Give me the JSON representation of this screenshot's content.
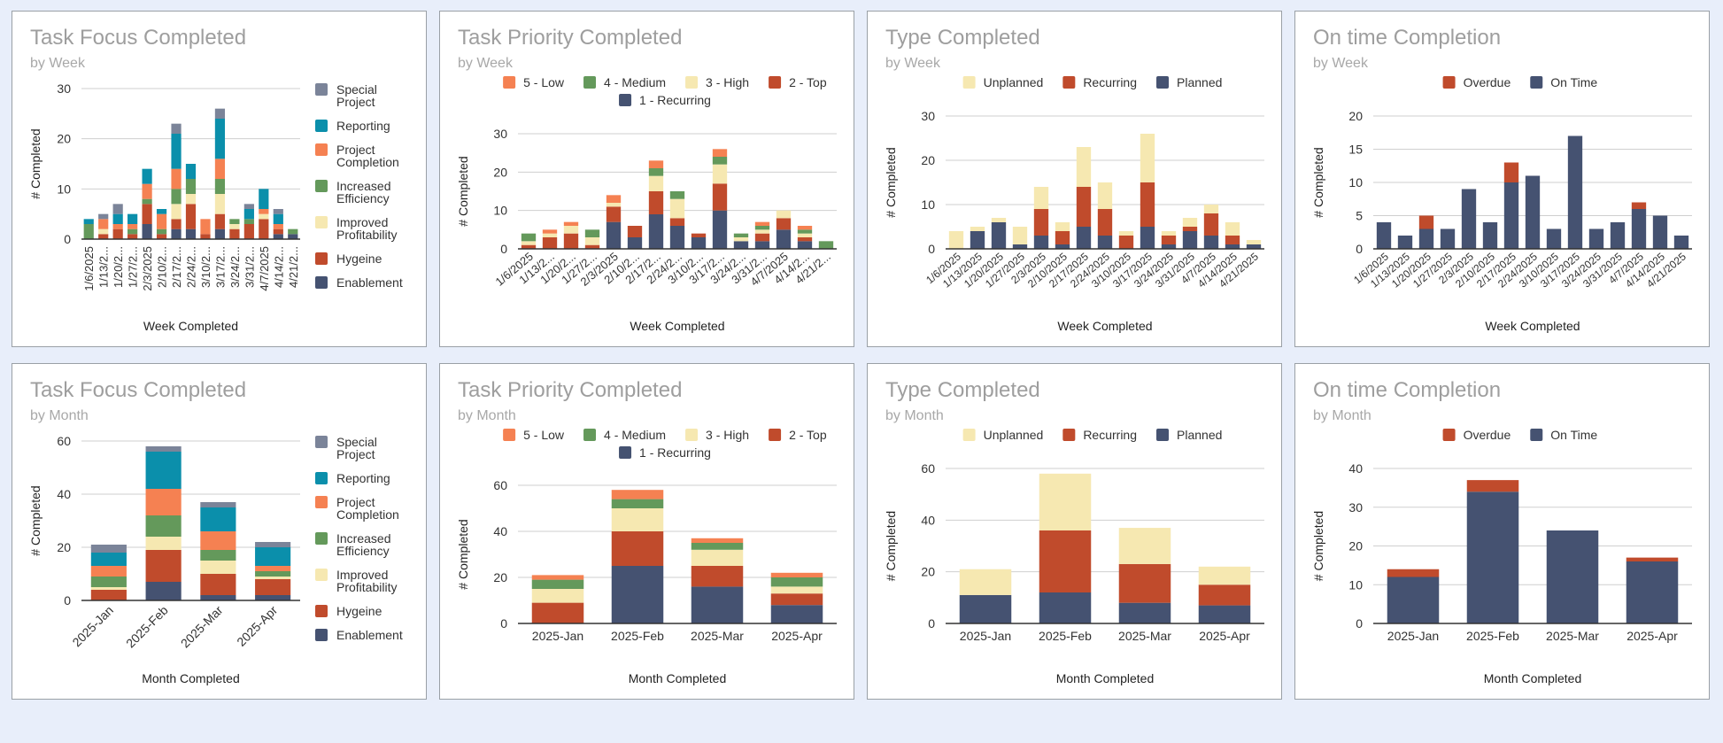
{
  "colors": {
    "Special Project": "#7b8499",
    "Reporting": "#0b8fab",
    "Project Completion": "#f58152",
    "Increased Efficiency": "#64995b",
    "Improved Profitability": "#f6e8b1",
    "Hygeine": "#c04b2c",
    "Enablement": "#455271",
    "5 - Low": "#f58152",
    "4 - Medium": "#64995b",
    "3 - High": "#f6e8b1",
    "2 - Top": "#c04b2c",
    "1 - Recurring": "#455271",
    "Unplanned": "#f6e8b1",
    "Recurring": "#c04b2c",
    "Planned": "#455271",
    "Overdue": "#c04b2c",
    "On Time": "#455271"
  },
  "chart_data": [
    {
      "id": "focus-week",
      "type": "bar",
      "stacked": true,
      "title": "Task Focus Completed",
      "subtitle": "by Week",
      "xlabel": "Week Completed",
      "ylabel": "# Completed",
      "ylim": [
        0,
        30
      ],
      "yticks": [
        0,
        10,
        20,
        30
      ],
      "legend": "right",
      "xlabel_style": "vertical-truncated",
      "categories": [
        "1/6/2025",
        "1/13/2...",
        "1/20/2...",
        "1/27/2...",
        "2/3/2025",
        "2/10/2...",
        "2/17/2...",
        "2/24/2...",
        "3/10/2...",
        "3/17/2...",
        "3/24/2...",
        "3/31/2...",
        "4/7/2025",
        "4/14/2...",
        "4/21/2..."
      ],
      "legend_order": [
        "Special Project",
        "Reporting",
        "Project Completion",
        "Increased Efficiency",
        "Improved Profitability",
        "Hygeine",
        "Enablement"
      ],
      "series": [
        {
          "name": "Enablement",
          "values": [
            0,
            0,
            0,
            0,
            3,
            0,
            2,
            2,
            0,
            2,
            0,
            0,
            0,
            1,
            1
          ]
        },
        {
          "name": "Hygeine",
          "values": [
            0,
            1,
            2,
            1,
            4,
            1,
            2,
            5,
            1,
            3,
            2,
            3,
            4,
            1,
            0
          ]
        },
        {
          "name": "Improved Profitability",
          "values": [
            0,
            1,
            0,
            0,
            0,
            0,
            3,
            2,
            0,
            4,
            1,
            0,
            1,
            0,
            0
          ]
        },
        {
          "name": "Increased Efficiency",
          "values": [
            3,
            0,
            0,
            1,
            1,
            1,
            3,
            3,
            0,
            3,
            1,
            1,
            0,
            0,
            1
          ]
        },
        {
          "name": "Project Completion",
          "values": [
            0,
            2,
            1,
            1,
            3,
            3,
            4,
            0,
            3,
            4,
            0,
            0,
            1,
            1,
            0
          ]
        },
        {
          "name": "Reporting",
          "values": [
            1,
            0,
            2,
            2,
            3,
            1,
            7,
            3,
            0,
            8,
            0,
            2,
            4,
            2,
            0
          ]
        },
        {
          "name": "Special Project",
          "values": [
            0,
            1,
            2,
            0,
            0,
            0,
            2,
            0,
            0,
            2,
            0,
            1,
            0,
            1,
            0
          ]
        }
      ]
    },
    {
      "id": "priority-week",
      "type": "bar",
      "stacked": true,
      "title": "Task Priority Completed",
      "subtitle": "by Week",
      "xlabel": "Week Completed",
      "ylabel": "# Completed",
      "ylim": [
        0,
        30
      ],
      "yticks": [
        0,
        10,
        20,
        30
      ],
      "legend": "top",
      "xlabel_style": "slanted-truncated",
      "categories": [
        "1/6/2025",
        "1/13/2...",
        "1/20/2...",
        "1/27/2...",
        "2/3/2025",
        "2/10/2...",
        "2/17/2...",
        "2/24/2...",
        "3/10/2...",
        "3/17/2...",
        "3/24/2...",
        "3/31/2...",
        "4/7/2025",
        "4/14/2...",
        "4/21/2..."
      ],
      "legend_order": [
        "5 - Low",
        "4 - Medium",
        "3 - High",
        "2 - Top",
        "1 - Recurring"
      ],
      "series": [
        {
          "name": "1 - Recurring",
          "values": [
            0,
            0,
            0,
            0,
            7,
            3,
            9,
            6,
            3,
            10,
            2,
            2,
            5,
            2,
            0
          ]
        },
        {
          "name": "2 - Top",
          "values": [
            1,
            3,
            4,
            1,
            4,
            3,
            6,
            2,
            1,
            7,
            0,
            2,
            3,
            1,
            0
          ]
        },
        {
          "name": "3 - High",
          "values": [
            1,
            1,
            2,
            2,
            1,
            0,
            4,
            5,
            0,
            5,
            1,
            1,
            2,
            1,
            0
          ]
        },
        {
          "name": "4 - Medium",
          "values": [
            2,
            0,
            0,
            2,
            0,
            0,
            2,
            2,
            0,
            2,
            1,
            1,
            0,
            1,
            2
          ]
        },
        {
          "name": "5 - Low",
          "values": [
            0,
            1,
            1,
            0,
            2,
            0,
            2,
            0,
            0,
            2,
            0,
            1,
            0,
            1,
            0
          ]
        }
      ]
    },
    {
      "id": "type-week",
      "type": "bar",
      "stacked": true,
      "title": "Type Completed",
      "subtitle": "by Week",
      "xlabel": "Week Completed",
      "ylabel": "# Completed",
      "ylim": [
        0,
        30
      ],
      "yticks": [
        0,
        10,
        20,
        30
      ],
      "legend": "top",
      "xlabel_style": "slanted",
      "categories": [
        "1/6/2025",
        "1/13/2025",
        "1/20/2025",
        "1/27/2025",
        "2/3/2025",
        "2/10/2025",
        "2/17/2025",
        "2/24/2025",
        "3/10/2025",
        "3/17/2025",
        "3/24/2025",
        "3/31/2025",
        "4/7/2025",
        "4/14/2025",
        "4/21/2025"
      ],
      "legend_order": [
        "Unplanned",
        "Recurring",
        "Planned"
      ],
      "series": [
        {
          "name": "Planned",
          "values": [
            0,
            4,
            6,
            1,
            3,
            1,
            5,
            3,
            0,
            5,
            1,
            4,
            3,
            1,
            1
          ]
        },
        {
          "name": "Recurring",
          "values": [
            0,
            0,
            0,
            0,
            6,
            3,
            9,
            6,
            3,
            10,
            2,
            1,
            5,
            2,
            0
          ]
        },
        {
          "name": "Unplanned",
          "values": [
            4,
            1,
            1,
            4,
            5,
            2,
            9,
            6,
            1,
            11,
            1,
            2,
            2,
            3,
            1
          ]
        }
      ]
    },
    {
      "id": "ontime-week",
      "type": "bar",
      "stacked": true,
      "title": "On time Completion",
      "subtitle": "by Week",
      "xlabel": "Week Completed",
      "ylabel": "# Completed",
      "ylim": [
        0,
        20
      ],
      "yticks": [
        0,
        5,
        10,
        15,
        20
      ],
      "legend": "top",
      "xlabel_style": "slanted",
      "categories": [
        "1/6/2025",
        "1/13/2025",
        "1/20/2025",
        "1/27/2025",
        "2/3/2025",
        "2/10/2025",
        "2/17/2025",
        "2/24/2025",
        "3/10/2025",
        "3/17/2025",
        "3/24/2025",
        "3/31/2025",
        "4/7/2025",
        "4/14/2025",
        "4/21/2025"
      ],
      "legend_order": [
        "Overdue",
        "On Time"
      ],
      "series": [
        {
          "name": "On Time",
          "values": [
            4,
            2,
            3,
            3,
            9,
            4,
            10,
            11,
            3,
            17,
            3,
            4,
            6,
            5,
            2
          ]
        },
        {
          "name": "Overdue",
          "values": [
            0,
            0,
            2,
            0,
            0,
            0,
            3,
            0,
            0,
            0,
            0,
            0,
            1,
            0,
            0
          ]
        }
      ]
    },
    {
      "id": "focus-month",
      "type": "bar",
      "stacked": true,
      "title": "Task Focus Completed",
      "subtitle": "by Month",
      "xlabel": "Month Completed",
      "ylabel": "# Completed",
      "ylim": [
        0,
        60
      ],
      "yticks": [
        0,
        20,
        40,
        60
      ],
      "legend": "right",
      "xlabel_style": "slanted45",
      "categories": [
        "2025-Jan",
        "2025-Feb",
        "2025-Mar",
        "2025-Apr"
      ],
      "legend_order": [
        "Special Project",
        "Reporting",
        "Project Completion",
        "Increased Efficiency",
        "Improved Profitability",
        "Hygeine",
        "Enablement"
      ],
      "series": [
        {
          "name": "Enablement",
          "values": [
            0,
            7,
            2,
            2
          ]
        },
        {
          "name": "Hygeine",
          "values": [
            4,
            12,
            8,
            6
          ]
        },
        {
          "name": "Improved Profitability",
          "values": [
            1,
            5,
            5,
            1
          ]
        },
        {
          "name": "Increased Efficiency",
          "values": [
            4,
            8,
            4,
            2
          ]
        },
        {
          "name": "Project Completion",
          "values": [
            4,
            10,
            7,
            2
          ]
        },
        {
          "name": "Reporting",
          "values": [
            5,
            14,
            9,
            7
          ]
        },
        {
          "name": "Special Project",
          "values": [
            3,
            2,
            2,
            2
          ]
        }
      ]
    },
    {
      "id": "priority-month",
      "type": "bar",
      "stacked": true,
      "title": "Task Priority Completed",
      "subtitle": "by Month",
      "xlabel": "Month Completed",
      "ylabel": "# Completed",
      "ylim": [
        0,
        60
      ],
      "yticks": [
        0,
        20,
        40,
        60
      ],
      "legend": "top",
      "xlabel_style": "horizontal",
      "categories": [
        "2025-Jan",
        "2025-Feb",
        "2025-Mar",
        "2025-Apr"
      ],
      "legend_order": [
        "5 - Low",
        "4 - Medium",
        "3 - High",
        "2 - Top",
        "1 - Recurring"
      ],
      "series": [
        {
          "name": "1 - Recurring",
          "values": [
            0,
            25,
            16,
            8
          ]
        },
        {
          "name": "2 - Top",
          "values": [
            9,
            15,
            9,
            5
          ]
        },
        {
          "name": "3 - High",
          "values": [
            6,
            10,
            7,
            3
          ]
        },
        {
          "name": "4 - Medium",
          "values": [
            4,
            4,
            3,
            4
          ]
        },
        {
          "name": "5 - Low",
          "values": [
            2,
            4,
            2,
            2
          ]
        }
      ]
    },
    {
      "id": "type-month",
      "type": "bar",
      "stacked": true,
      "title": "Type Completed",
      "subtitle": "by Month",
      "xlabel": "Month Completed",
      "ylabel": "# Completed",
      "ylim": [
        0,
        60
      ],
      "yticks": [
        0,
        20,
        40,
        60
      ],
      "legend": "top",
      "xlabel_style": "horizontal",
      "categories": [
        "2025-Jan",
        "2025-Feb",
        "2025-Mar",
        "2025-Apr"
      ],
      "legend_order": [
        "Unplanned",
        "Recurring",
        "Planned"
      ],
      "series": [
        {
          "name": "Planned",
          "values": [
            11,
            12,
            8,
            7
          ]
        },
        {
          "name": "Recurring",
          "values": [
            0,
            24,
            15,
            8
          ]
        },
        {
          "name": "Unplanned",
          "values": [
            10,
            22,
            14,
            7
          ]
        }
      ]
    },
    {
      "id": "ontime-month",
      "type": "bar",
      "stacked": true,
      "title": "On time Completion",
      "subtitle": "by Month",
      "xlabel": "Month Completed",
      "ylabel": "# Completed",
      "ylim": [
        0,
        40
      ],
      "yticks": [
        0,
        10,
        20,
        30,
        40
      ],
      "legend": "top",
      "xlabel_style": "horizontal",
      "categories": [
        "2025-Jan",
        "2025-Feb",
        "2025-Mar",
        "2025-Apr"
      ],
      "legend_order": [
        "Overdue",
        "On Time"
      ],
      "series": [
        {
          "name": "On Time",
          "values": [
            12,
            34,
            24,
            16
          ]
        },
        {
          "name": "Overdue",
          "values": [
            2,
            3,
            0,
            1
          ]
        }
      ]
    }
  ]
}
